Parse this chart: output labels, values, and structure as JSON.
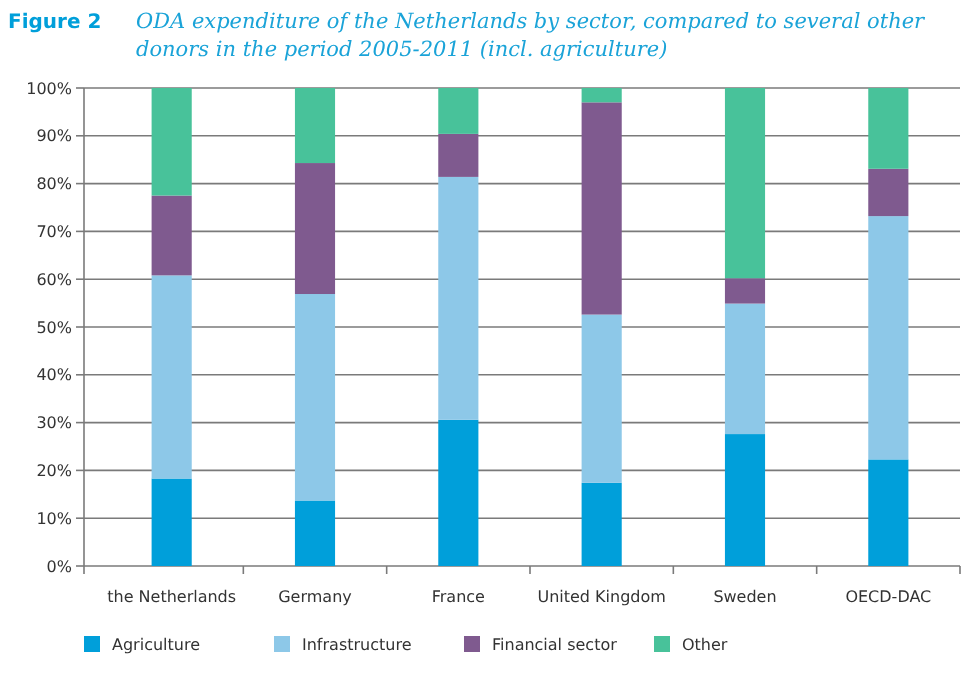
{
  "chart_data": {
    "type": "bar",
    "stacked": true,
    "title": "ODA expenditure of the Netherlands by sector, compared to several other donors in the period 2005-2011 (incl. agriculture)",
    "annotations": [
      "Figure 2"
    ],
    "categories": [
      "the Netherlands",
      "Germany",
      "France",
      "United Kingdom",
      "Sweden",
      "OECD-DAC"
    ],
    "series": [
      {
        "name": "Agriculture",
        "color": "#009fda",
        "values": [
          18.3,
          13.7,
          30.6,
          17.4,
          27.6,
          22.3
        ]
      },
      {
        "name": "Infrastructure",
        "color": "#8dc8e8",
        "values": [
          42.5,
          43.2,
          50.8,
          35.2,
          27.3,
          50.9
        ]
      },
      {
        "name": "Financial sector",
        "color": "#7f5a8f",
        "values": [
          16.7,
          27.4,
          9.0,
          44.4,
          5.3,
          9.9
        ]
      },
      {
        "name": "Other",
        "color": "#48c29a",
        "values": [
          22.5,
          15.7,
          9.6,
          3.0,
          39.8,
          16.9
        ]
      }
    ],
    "ylim": [
      0,
      100
    ],
    "yticks": [
      {
        "value": 0,
        "label": "0%"
      },
      {
        "value": 10,
        "label": "10%"
      },
      {
        "value": 20,
        "label": "20%"
      },
      {
        "value": 30,
        "label": "30%"
      },
      {
        "value": 40,
        "label": "40%"
      },
      {
        "value": 50,
        "label": "50%"
      },
      {
        "value": 60,
        "label": "60%"
      },
      {
        "value": 70,
        "label": "70%"
      },
      {
        "value": 80,
        "label": "80%"
      },
      {
        "value": 90,
        "label": "90%"
      },
      {
        "value": 100,
        "label": "100%"
      }
    ],
    "grid": "y",
    "legend": "bottom left"
  }
}
